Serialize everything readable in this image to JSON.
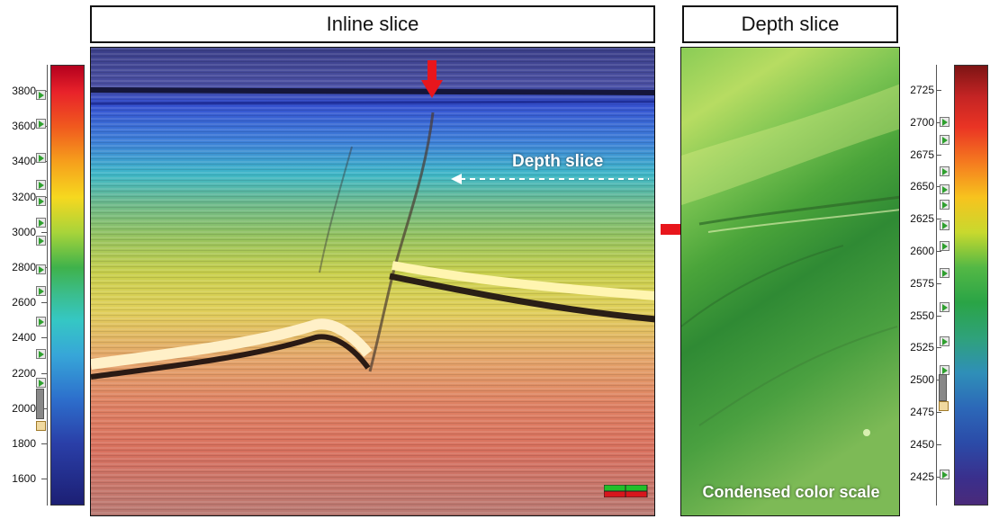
{
  "titles": {
    "inline": "Inline slice",
    "depth": "Depth slice"
  },
  "labels": {
    "depth_slice": "Depth slice",
    "condensed_color_scale": "Condensed color scale"
  },
  "left_scale": {
    "ticks": [
      "3800",
      "3600",
      "3400",
      "3200",
      "3000",
      "2800",
      "2600",
      "2400",
      "2200",
      "2000",
      "1800",
      "1600"
    ]
  },
  "right_scale": {
    "ticks": [
      "2725",
      "2700",
      "2675",
      "2650",
      "2625",
      "2600",
      "2575",
      "2550",
      "2525",
      "2500",
      "2475",
      "2450",
      "2425"
    ]
  },
  "colors": {
    "arrow": "#e8161c",
    "border": "#111111"
  },
  "icons": {
    "inline_arrow": "down-arrow-icon",
    "depth_arrow": "right-arrow-icon",
    "dashed_arrow": "left-dashed-arrow-icon",
    "marker": "play-marker-icon",
    "tool": "colorbar-toggle-icon"
  }
}
